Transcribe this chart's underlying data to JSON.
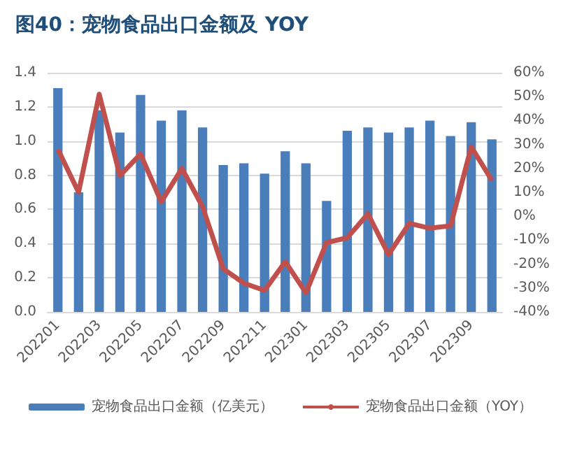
{
  "chart_data": {
    "type": "bar",
    "title": "图40：宠物食品出口金额及 YOY",
    "categories": [
      "202201",
      null,
      "202203",
      null,
      "202205",
      null,
      "202207",
      null,
      "202209",
      null,
      "202211",
      null,
      "202301",
      null,
      "202303",
      null,
      "202305",
      null,
      "202307",
      null,
      "202309",
      null
    ],
    "series": [
      {
        "name": "宠物食品出口金额（亿美元）",
        "color": "#4a7ebb",
        "values": [
          1.31,
          0.7,
          1.18,
          1.05,
          1.27,
          1.12,
          1.18,
          1.08,
          0.86,
          0.87,
          0.81,
          0.94,
          0.87,
          0.65,
          1.06,
          1.08,
          1.05,
          1.08,
          1.12,
          1.03,
          1.11,
          1.01
        ]
      },
      {
        "name": "宠物食品出口金额（YOY）",
        "type": "line",
        "axis": "y2",
        "color": "#c0504d",
        "values": [
          28,
          10,
          51,
          17,
          26,
          6,
          20,
          4,
          -22,
          -28,
          -31,
          -19,
          -32,
          -11,
          -9,
          1,
          -16,
          -3,
          -5,
          -4,
          29,
          15
        ]
      }
    ],
    "ylim": [
      0,
      1.4
    ],
    "yticks": [
      {
        "value": 0,
        "label": "0.0"
      },
      0.2,
      0.4,
      0.6,
      0.8,
      {
        "value": 1,
        "label": "1.0"
      },
      1.2,
      1.4
    ],
    "y2lim": [
      -40,
      60
    ],
    "y2ticks": [
      {
        "value": -40,
        "label": "-40%"
      },
      {
        "value": -30,
        "label": "-30%"
      },
      {
        "value": -20,
        "label": "-20%"
      },
      {
        "value": -10,
        "label": "-10%"
      },
      {
        "value": 0,
        "label": "0%"
      },
      {
        "value": 10,
        "label": "10%"
      },
      {
        "value": 20,
        "label": "20%"
      },
      {
        "value": 30,
        "label": "30%"
      },
      {
        "value": 40,
        "label": "40%"
      },
      {
        "value": 50,
        "label": "50%"
      },
      {
        "value": 60,
        "label": "60%"
      }
    ],
    "grid": "y",
    "legend": "bottom",
    "marker": "none",
    "line_style": "solid"
  }
}
